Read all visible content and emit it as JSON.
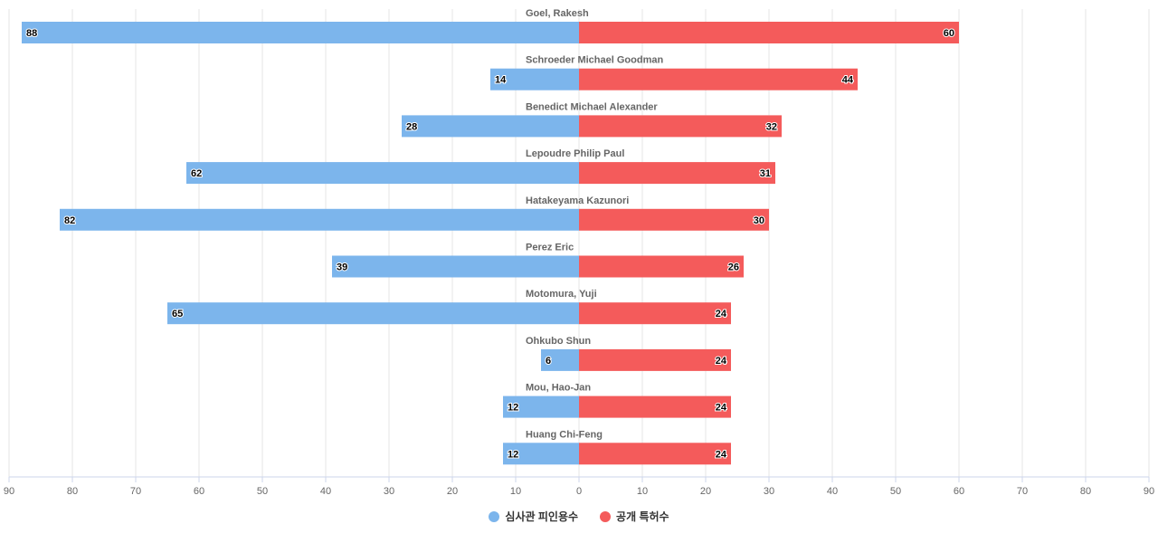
{
  "chart_data": {
    "type": "bar",
    "orientation": "horizontal-diverging",
    "categories": [
      "Goel, Rakesh",
      "Schroeder Michael Goodman",
      "Benedict Michael Alexander",
      "Lepoudre Philip Paul",
      "Hatakeyama Kazunori",
      "Perez Eric",
      "Motomura, Yuji",
      "Ohkubo Shun",
      "Mou, Hao-Jan",
      "Huang Chi-Feng"
    ],
    "series": [
      {
        "name": "심사관 피인용수",
        "color": "#7cb5ec",
        "side": "left",
        "values": [
          88,
          14,
          28,
          62,
          82,
          39,
          65,
          6,
          12,
          12
        ]
      },
      {
        "name": "공개 특허수",
        "color": "#f45b5b",
        "side": "right",
        "values": [
          60,
          44,
          32,
          31,
          30,
          26,
          24,
          24,
          24,
          24
        ]
      }
    ],
    "xlim": [
      -90,
      90
    ],
    "x_ticks": [
      "90",
      "80",
      "70",
      "60",
      "50",
      "40",
      "30",
      "20",
      "10",
      "0",
      "10",
      "20",
      "30",
      "40",
      "50",
      "60",
      "70",
      "80",
      "90"
    ],
    "grid": true,
    "legend_position": "bottom-center",
    "title": "",
    "xlabel": "",
    "ylabel": ""
  }
}
